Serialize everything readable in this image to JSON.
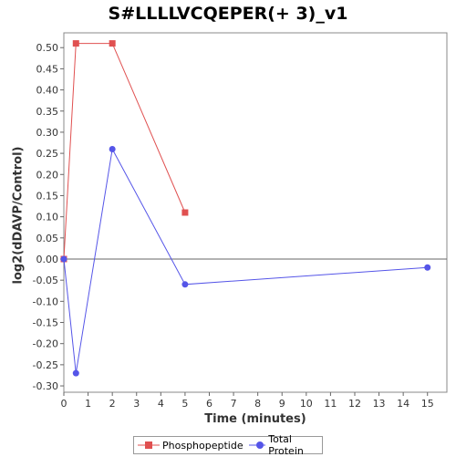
{
  "chart_data": {
    "type": "line",
    "title": "S#LLLLVCQEPER(+ 3)_v1",
    "xlabel": "Time (minutes)",
    "ylabel": "log2(dDAVP/Control)",
    "xlim": [
      0,
      15.8
    ],
    "ylim": [
      -0.315,
      0.535
    ],
    "x_ticks": [
      0,
      1,
      2,
      3,
      4,
      5,
      6,
      7,
      8,
      9,
      10,
      11,
      12,
      13,
      14,
      15
    ],
    "y_ticks": [
      -0.3,
      -0.25,
      -0.2,
      -0.15,
      -0.1,
      -0.05,
      0.0,
      0.05,
      0.1,
      0.15,
      0.2,
      0.25,
      0.3,
      0.35,
      0.4,
      0.45,
      0.5
    ],
    "zero_line": true,
    "grid": false,
    "legend_position": "bottom",
    "series": [
      {
        "name": "Phosphopeptide",
        "color": "#e05050",
        "marker": "square",
        "x": [
          0,
          0.5,
          2,
          5
        ],
        "y": [
          0.0,
          0.51,
          0.51,
          0.11
        ]
      },
      {
        "name": "Total Protein",
        "color": "#5555e8",
        "marker": "circle",
        "x": [
          0,
          0.5,
          2,
          5,
          15
        ],
        "y": [
          0.0,
          -0.27,
          0.26,
          -0.06,
          -0.02
        ]
      }
    ]
  }
}
